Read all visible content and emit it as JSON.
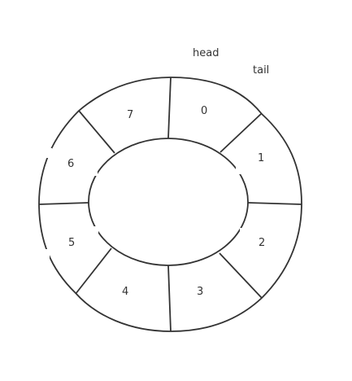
{
  "pointers": {
    "head": "head",
    "tail": "tail"
  },
  "slots": [
    "0",
    "1",
    "2",
    "3",
    "4",
    "5",
    "6",
    "7"
  ],
  "colors": {
    "stroke": "#333333",
    "background": "#ffffff"
  }
}
